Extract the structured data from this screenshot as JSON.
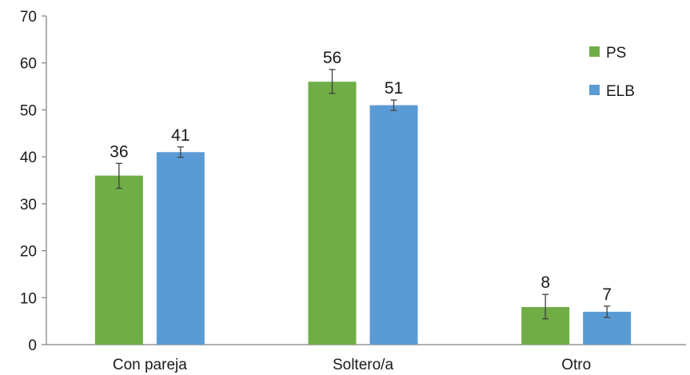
{
  "chart_data": {
    "type": "bar",
    "categories": [
      "Con pareja",
      "Soltero/a",
      "Otro"
    ],
    "series": [
      {
        "name": "PS",
        "color": "#70ad47",
        "values": [
          36,
          56,
          8
        ],
        "error_low": [
          33.3,
          53.5,
          5.5
        ],
        "error_high": [
          38.6,
          58.6,
          10.7
        ]
      },
      {
        "name": "ELB",
        "color": "#5b9bd5",
        "values": [
          41,
          51,
          7
        ],
        "error_low": [
          39.9,
          49.9,
          5.8
        ],
        "error_high": [
          42.1,
          52.1,
          8.2
        ]
      }
    ],
    "ylim": [
      0,
      70
    ],
    "yticks": [
      0,
      10,
      20,
      30,
      40,
      50,
      60,
      70
    ],
    "data_labels": [
      [
        "36",
        "56",
        "8"
      ],
      [
        "41",
        "51",
        "7"
      ]
    ],
    "title": "",
    "xlabel": "",
    "ylabel": "",
    "grid": false,
    "legend_position": "top-right"
  }
}
